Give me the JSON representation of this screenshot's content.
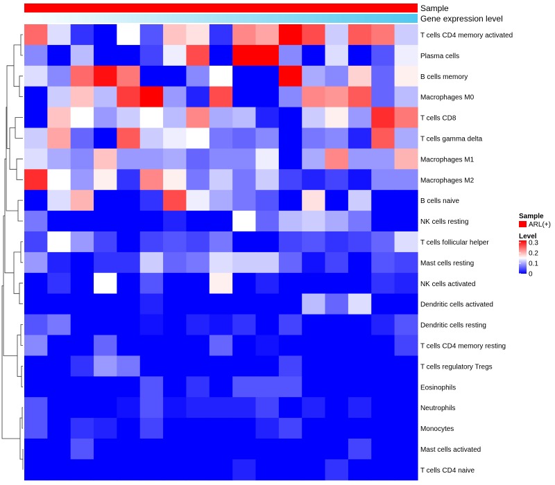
{
  "chart_data": {
    "type": "heatmap",
    "annotations": [
      {
        "label": "Sample",
        "color": "#ff0000"
      },
      {
        "label": "Gene expression level",
        "gradient": [
          "#ffffff",
          "#4fc8ef"
        ]
      }
    ],
    "rows": [
      "T cells CD4 memory activated",
      "Plasma cells",
      "B cells memory",
      "Macrophages M0",
      "T cells CD8",
      "T cells gamma delta",
      "Macrophages M1",
      "Macrophages M2",
      "B cells naive",
      "NK cells resting",
      "T cells follicular helper",
      "Mast cells resting",
      "NK cells activated",
      "Dendritic cells activated",
      "Dendritic cells resting",
      "T cells CD4 memory resting",
      "T cells regulatory  Tregs",
      "Eosinophils",
      "Neutrophils",
      "Monocytes",
      "Mast cells activated",
      "T cells CD4 naive"
    ],
    "values": [
      [
        0.25,
        0.13,
        0.03,
        0.0,
        0.15,
        0.05,
        0.19,
        0.17,
        0.03,
        0.23,
        0.21,
        0.32,
        0.27,
        0.12,
        0.26,
        0.24,
        0.12
      ],
      [
        0.08,
        0.0,
        0.11,
        0.0,
        0.0,
        0.04,
        0.14,
        0.27,
        0.0,
        0.32,
        0.32,
        0.08,
        0.0,
        0.13,
        0.0,
        0.05,
        0.14
      ],
      [
        0.13,
        0.08,
        0.25,
        0.31,
        0.24,
        0.0,
        0.0,
        0.08,
        0.15,
        0.0,
        0.0,
        0.32,
        0.1,
        0.08,
        0.18,
        0.06,
        0.16
      ],
      [
        0.0,
        0.12,
        0.19,
        0.11,
        0.28,
        0.32,
        0.09,
        0.02,
        0.27,
        0.0,
        0.0,
        0.08,
        0.23,
        0.22,
        0.26,
        0.06,
        0.11
      ],
      [
        0.0,
        0.19,
        0.15,
        0.09,
        0.12,
        0.15,
        0.11,
        0.23,
        0.1,
        0.11,
        0.02,
        0.0,
        0.12,
        0.16,
        0.09,
        0.29,
        0.24
      ],
      [
        0.12,
        0.21,
        0.06,
        0.0,
        0.26,
        0.12,
        0.14,
        0.15,
        0.07,
        0.06,
        0.08,
        0.0,
        0.07,
        0.08,
        0.02,
        0.26,
        0.1
      ],
      [
        0.13,
        0.1,
        0.08,
        0.19,
        0.09,
        0.09,
        0.1,
        0.06,
        0.08,
        0.08,
        0.14,
        0.0,
        0.1,
        0.23,
        0.09,
        0.09,
        0.2
      ],
      [
        0.29,
        0.15,
        0.09,
        0.16,
        0.03,
        0.23,
        0.16,
        0.07,
        0.12,
        0.07,
        0.12,
        0.04,
        0.02,
        0.04,
        0.01,
        0.08,
        0.08
      ],
      [
        0.0,
        0.13,
        0.2,
        0.0,
        0.0,
        0.03,
        0.27,
        0.14,
        0.1,
        0.07,
        0.05,
        0.0,
        0.17,
        0.0,
        0.12,
        0.0,
        0.0
      ],
      [
        0.07,
        0.0,
        0.0,
        0.0,
        0.0,
        0.0,
        0.02,
        0.0,
        0.0,
        0.15,
        0.06,
        0.11,
        0.12,
        0.1,
        0.07,
        0.0,
        0.0
      ],
      [
        0.04,
        0.15,
        0.09,
        0.04,
        0.0,
        0.04,
        0.05,
        0.04,
        0.07,
        0.0,
        0.0,
        0.04,
        0.05,
        0.03,
        0.04,
        0.06,
        0.13
      ],
      [
        0.09,
        0.02,
        0.0,
        0.03,
        0.03,
        0.12,
        0.06,
        0.07,
        0.13,
        0.12,
        0.12,
        0.06,
        0.01,
        0.04,
        0.0,
        0.05,
        0.04
      ],
      [
        0.0,
        0.03,
        0.0,
        0.15,
        0.0,
        0.05,
        0.0,
        0.0,
        0.16,
        0.0,
        0.02,
        0.0,
        0.0,
        0.0,
        0.0,
        0.03,
        0.02
      ],
      [
        0.0,
        0.0,
        0.0,
        0.0,
        0.0,
        0.02,
        0.0,
        0.0,
        0.0,
        0.0,
        0.0,
        0.0,
        0.11,
        0.06,
        0.13,
        0.0,
        0.0
      ],
      [
        0.05,
        0.07,
        0.0,
        0.0,
        0.0,
        0.01,
        0.0,
        0.02,
        0.01,
        0.03,
        0.0,
        0.04,
        0.0,
        0.0,
        0.0,
        0.02,
        0.05
      ],
      [
        0.08,
        0.0,
        0.0,
        0.06,
        0.0,
        0.0,
        0.0,
        0.0,
        0.06,
        0.0,
        0.01,
        0.0,
        0.0,
        0.0,
        0.0,
        0.0,
        0.04
      ],
      [
        0.0,
        0.0,
        0.03,
        0.09,
        0.07,
        0.0,
        0.0,
        0.0,
        0.0,
        0.0,
        0.0,
        0.04,
        0.0,
        0.0,
        0.0,
        0.0,
        0.0
      ],
      [
        0.0,
        0.0,
        0.0,
        0.0,
        0.0,
        0.05,
        0.0,
        0.03,
        0.0,
        0.05,
        0.05,
        0.05,
        0.0,
        0.0,
        0.0,
        0.0,
        0.0
      ],
      [
        0.05,
        0.0,
        0.0,
        0.0,
        0.01,
        0.05,
        0.01,
        0.02,
        0.02,
        0.02,
        0.04,
        0.0,
        0.02,
        0.0,
        0.02,
        0.0,
        0.0
      ],
      [
        0.05,
        0.0,
        0.03,
        0.02,
        0.0,
        0.04,
        0.0,
        0.0,
        0.0,
        0.0,
        0.02,
        0.04,
        0.0,
        0.0,
        0.0,
        0.0,
        0.0
      ],
      [
        0.0,
        0.0,
        0.05,
        0.0,
        0.0,
        0.0,
        0.0,
        0.0,
        0.0,
        0.0,
        0.0,
        0.0,
        0.0,
        0.0,
        0.04,
        0.0,
        0.0
      ],
      [
        0.0,
        0.0,
        0.0,
        0.0,
        0.0,
        0.0,
        0.0,
        0.0,
        0.0,
        0.02,
        0.0,
        0.0,
        0.0,
        0.03,
        0.0,
        0.0,
        0.0
      ]
    ],
    "color_scale": {
      "min": 0,
      "mid": 0.15,
      "max": 0.32,
      "low": "#0000ff",
      "middle": "#ffffff",
      "high": "#ff0000"
    },
    "legend": {
      "sample_title": "Sample",
      "sample_item": "ARL(+)",
      "level_title": "Level",
      "level_ticks": [
        "0.3",
        "0.2",
        "0.1",
        "0"
      ],
      "level_tick_values": [
        0.3,
        0.2,
        0.1,
        0
      ]
    }
  }
}
